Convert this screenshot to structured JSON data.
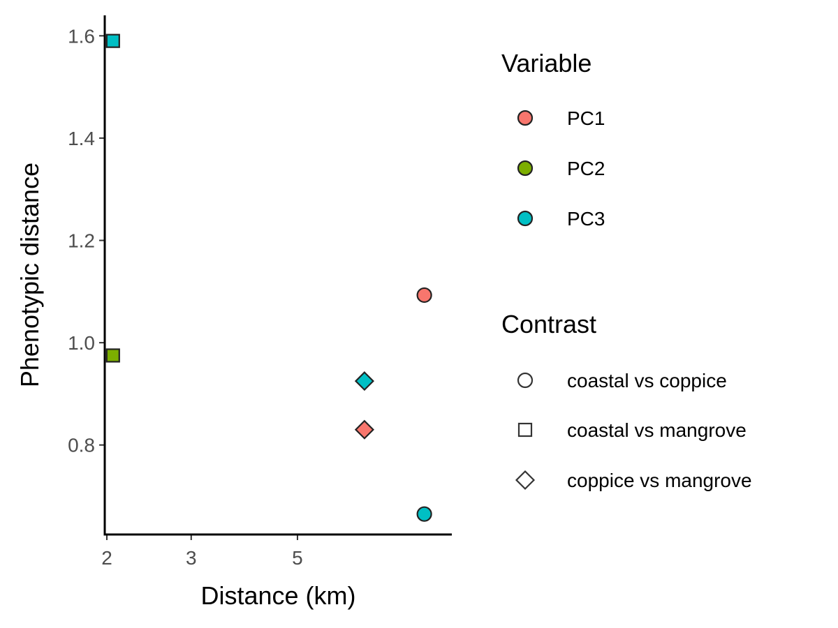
{
  "chart_data": {
    "type": "scatter",
    "xlabel": "Distance (km)",
    "ylabel": "Phenotypic distance",
    "x_scale": "log",
    "xlim": [
      1.98,
      10.5
    ],
    "ylim": [
      0.625,
      1.64
    ],
    "x_ticks": [
      2,
      3,
      5
    ],
    "y_ticks": [
      0.8,
      1.0,
      1.2,
      1.4,
      1.6
    ],
    "y_tick_labels": [
      "0.8",
      "1.0",
      "1.2",
      "1.4",
      "1.6"
    ],
    "grid": false,
    "legend_position": "right",
    "legends": [
      {
        "title": "Variable",
        "kind": "fill",
        "entries": [
          {
            "label": "PC1",
            "color": "#F8766D"
          },
          {
            "label": "PC2",
            "color": "#7CAE00"
          },
          {
            "label": "PC3",
            "color": "#00BFC4"
          }
        ]
      },
      {
        "title": "Contrast",
        "kind": "shape",
        "entries": [
          {
            "label": "coastal vs coppice",
            "shape": "circle"
          },
          {
            "label": "coastal vs mangrove",
            "shape": "square"
          },
          {
            "label": "coppice vs mangrove",
            "shape": "diamond"
          }
        ]
      }
    ],
    "points": [
      {
        "x": 2.06,
        "y": 1.59,
        "variable": "PC3",
        "contrast": "coastal vs mangrove"
      },
      {
        "x": 2.06,
        "y": 0.975,
        "variable": "PC2",
        "contrast": "coastal vs mangrove"
      },
      {
        "x": 6.9,
        "y": 0.925,
        "variable": "PC3",
        "contrast": "coppice vs mangrove"
      },
      {
        "x": 6.9,
        "y": 0.83,
        "variable": "PC1",
        "contrast": "coppice vs mangrove"
      },
      {
        "x": 9.2,
        "y": 1.093,
        "variable": "PC1",
        "contrast": "coastal vs coppice"
      },
      {
        "x": 9.2,
        "y": 0.665,
        "variable": "PC3",
        "contrast": "coastal vs coppice"
      }
    ]
  }
}
